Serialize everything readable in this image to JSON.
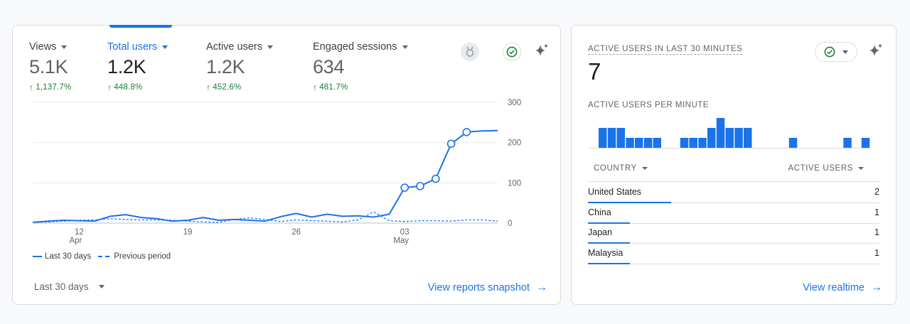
{
  "overview": {
    "metrics": [
      {
        "label": "Views",
        "value": "5.1K",
        "change": "1,137.7%",
        "active": false
      },
      {
        "label": "Total users",
        "value": "1.2K",
        "change": "448.8%",
        "active": true
      },
      {
        "label": "Active users",
        "value": "1.2K",
        "change": "452.6%",
        "active": false
      },
      {
        "label": "Engaged sessions",
        "value": "634",
        "change": "481.7%",
        "active": false
      }
    ],
    "icons": {
      "insights": "medal-icon",
      "status": "check-circle-icon",
      "ai": "sparkle-icon"
    },
    "chart_data": {
      "type": "line",
      "x": [
        "Apr 9",
        "Apr 10",
        "Apr 11",
        "Apr 12",
        "Apr 13",
        "Apr 14",
        "Apr 15",
        "Apr 16",
        "Apr 17",
        "Apr 18",
        "Apr 19",
        "Apr 20",
        "Apr 21",
        "Apr 22",
        "Apr 23",
        "Apr 24",
        "Apr 25",
        "Apr 26",
        "Apr 27",
        "Apr 28",
        "Apr 29",
        "Apr 30",
        "May 1",
        "May 2",
        "May 3",
        "May 4",
        "May 5",
        "May 6",
        "May 7",
        "May 8",
        "May 9"
      ],
      "series": [
        {
          "name": "Last 30 days",
          "values": [
            2,
            5,
            7,
            6,
            5,
            17,
            21,
            14,
            11,
            5,
            7,
            14,
            7,
            9,
            7,
            5,
            16,
            24,
            15,
            22,
            17,
            18,
            15,
            22,
            88,
            92,
            110,
            197,
            226,
            229,
            230
          ]
        },
        {
          "name": "Previous period",
          "values": [
            2,
            3,
            5,
            7,
            8,
            11,
            9,
            8,
            8,
            7,
            5,
            3,
            2,
            9,
            13,
            9,
            4,
            8,
            6,
            5,
            3,
            8,
            28,
            6,
            4,
            6,
            6,
            5,
            8,
            8,
            5
          ]
        }
      ],
      "markers_series": "Last 30 days",
      "marker_indices": [
        24,
        25,
        26,
        27,
        28
      ],
      "ylim": [
        0,
        300
      ],
      "y_ticks": [
        "0",
        "100",
        "200",
        "300"
      ],
      "x_ticks": [
        {
          "day": "12",
          "month": "Apr",
          "index": 3
        },
        {
          "day": "19",
          "month": "",
          "index": 10
        },
        {
          "day": "26",
          "month": "",
          "index": 17
        },
        {
          "day": "03",
          "month": "May",
          "index": 24
        }
      ],
      "grid": true,
      "legend": "bottom-left"
    },
    "legend_labels": {
      "current": "Last 30 days",
      "previous": "Previous period"
    },
    "date_range": "Last 30 days",
    "link_label": "View reports snapshot"
  },
  "realtime": {
    "title": "ACTIVE USERS IN LAST 30 MINUTES",
    "value": "7",
    "subtitle": "ACTIVE USERS PER MINUTE",
    "per_minute": [
      2,
      2,
      2,
      1,
      1,
      1,
      1,
      0,
      0,
      1,
      1,
      1,
      2,
      3,
      2,
      2,
      2,
      0,
      0,
      0,
      0,
      1,
      0,
      0,
      0,
      0,
      0,
      1,
      0,
      1
    ],
    "columns": {
      "country": "COUNTRY",
      "users": "ACTIVE USERS"
    },
    "rows": [
      {
        "country": "United States",
        "users": "2",
        "share": 1.0
      },
      {
        "country": "China",
        "users": "1",
        "share": 0.5
      },
      {
        "country": "Japan",
        "users": "1",
        "share": 0.5
      },
      {
        "country": "Malaysia",
        "users": "1",
        "share": 0.5
      }
    ],
    "link_label": "View realtime"
  },
  "colors": {
    "accent": "#1a73e8",
    "positive": "#188038",
    "text": "#3c4043",
    "muted": "#5f6368"
  }
}
